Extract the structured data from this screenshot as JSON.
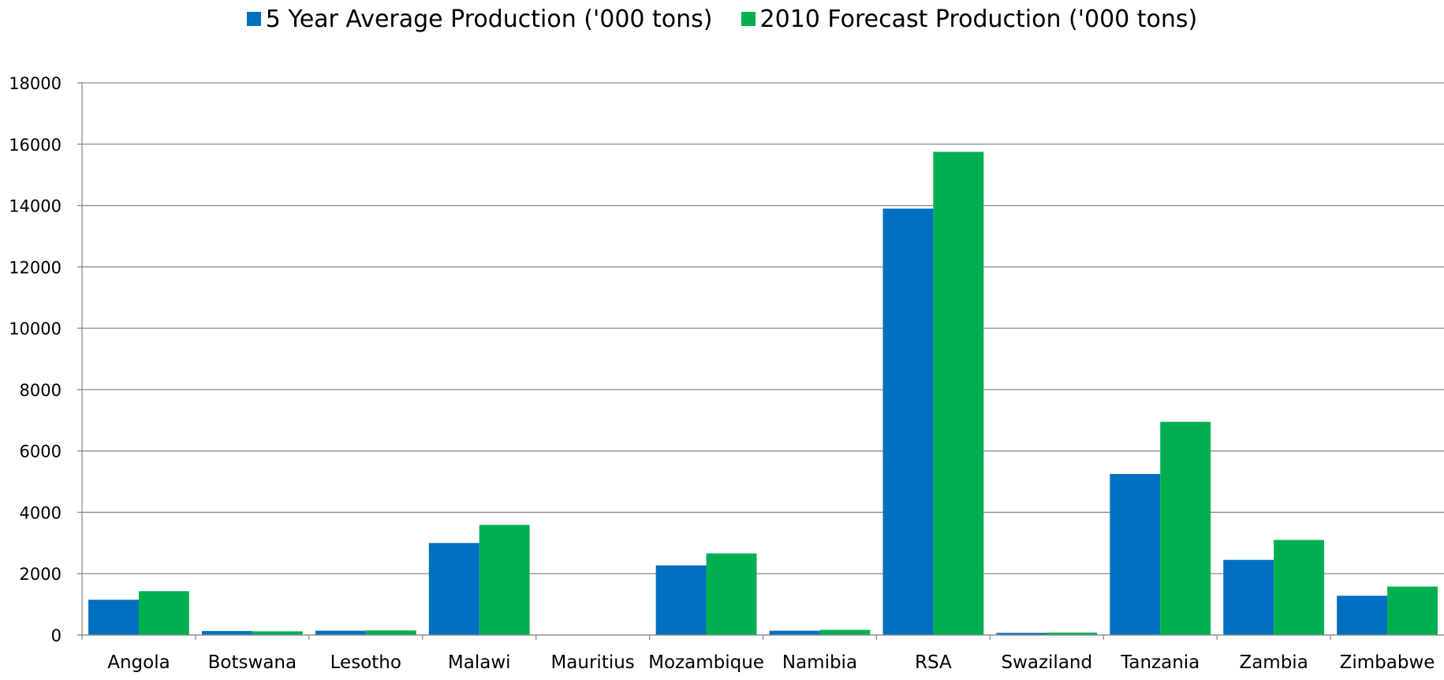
{
  "chart_data": {
    "type": "bar",
    "title": "",
    "xlabel": "",
    "ylabel": "",
    "ylim": [
      0,
      18000
    ],
    "yticks": [
      0,
      2000,
      4000,
      6000,
      8000,
      10000,
      12000,
      14000,
      16000,
      18000
    ],
    "grid": true,
    "legend_position": "top-center",
    "categories": [
      "Angola",
      "Botswana",
      "Lesotho",
      "Malawi",
      "Mauritius",
      "Mozambique",
      "Namibia",
      "RSA",
      "Swaziland",
      "Tanzania",
      "Zambia",
      "Zimbabwe"
    ],
    "series": [
      {
        "name": "5 Year Average Production ('000 tons)",
        "color": "#0070c0",
        "values": [
          1150,
          130,
          140,
          3000,
          0,
          2270,
          140,
          13900,
          70,
          5250,
          2450,
          1280
        ]
      },
      {
        "name": "2010 Forecast Production ('000 tons)",
        "color": "#00b050",
        "values": [
          1430,
          120,
          150,
          3590,
          0,
          2660,
          170,
          15750,
          80,
          6950,
          3100,
          1580
        ]
      }
    ]
  }
}
